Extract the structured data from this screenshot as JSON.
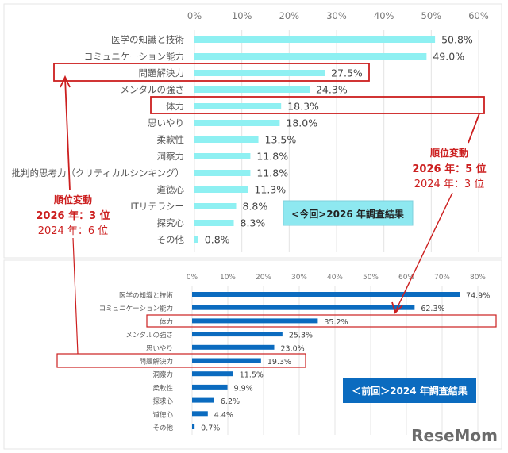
{
  "chart_data": [
    {
      "type": "bar",
      "orientation": "horizontal",
      "legend_label": "<今回>2026 年調査結果",
      "categories": [
        "医学の知識と技術",
        "コミュニケーション能力",
        "問題解決力",
        "メンタルの強さ",
        "体力",
        "思いやり",
        "柔軟性",
        "洞察力",
        "批判的思考力（クリティカルシンキング）",
        "道徳心",
        "ITリテラシー",
        "探究心",
        "その他"
      ],
      "values": [
        50.8,
        49.0,
        27.5,
        24.3,
        18.3,
        18.0,
        13.5,
        11.8,
        11.8,
        11.3,
        8.8,
        8.3,
        0.8
      ],
      "data_labels": [
        "50.8%",
        "49.0%",
        "27.5%",
        "24.3%",
        "18.3%",
        "18.0%",
        "13.5%",
        "11.8%",
        "11.8%",
        "11.3%",
        "8.8%",
        "8.3%",
        "0.8%"
      ],
      "xlim": [
        0,
        60
      ],
      "ticks": [
        "0%",
        "10%",
        "20%",
        "30%",
        "40%",
        "50%",
        "60%"
      ],
      "grid": true,
      "bar_color": "#8ef0f2",
      "legend_color": "#8ee8f0"
    },
    {
      "type": "bar",
      "orientation": "horizontal",
      "legend_label": "＜前回＞2024 年調査結果",
      "categories": [
        "医学の知識と技術",
        "コミュニケーション能力",
        "体力",
        "メンタルの強さ",
        "思いやり",
        "問題解決力",
        "洞察力",
        "柔軟性",
        "探求心",
        "道徳心",
        "その他"
      ],
      "values": [
        74.9,
        62.3,
        35.2,
        25.3,
        23.0,
        19.3,
        11.5,
        9.9,
        6.2,
        4.4,
        0.7
      ],
      "data_labels": [
        "74.9%",
        "62.3%",
        "35.2%",
        "25.3%",
        "23.0%",
        "19.3%",
        "11.5%",
        "9.9%",
        "6.2%",
        "4.4%",
        "0.7%"
      ],
      "xlim": [
        0,
        80
      ],
      "ticks": [
        "0%",
        "10%",
        "20%",
        "30%",
        "40%",
        "50%",
        "60%",
        "70%",
        "80%"
      ],
      "grid": true,
      "bar_color": "#0b6bbf",
      "legend_color": "#0b6bbf"
    }
  ],
  "annotations": {
    "left": {
      "title": "順位変動",
      "line1": "2026 年：3 位",
      "line2": "2024 年：6 位"
    },
    "right": {
      "title": "順位変動",
      "line1": "2026 年：5 位",
      "line2": "2024 年：3 位"
    },
    "highlight_color": "#cc1f1f"
  },
  "logo": "ReseMom"
}
